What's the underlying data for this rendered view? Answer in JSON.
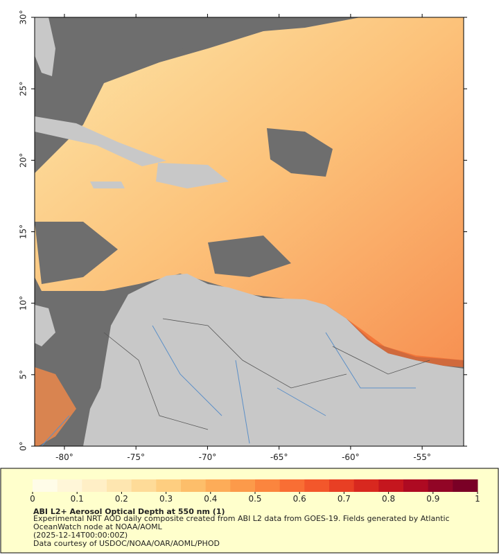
{
  "map": {
    "lonlim": [
      -82.08,
      -52.1
    ],
    "latlim": [
      0,
      30
    ],
    "lonticks": [
      {
        "value": -80,
        "label": "-80°"
      },
      {
        "value": -75,
        "label": "-75°"
      },
      {
        "value": -70,
        "label": "-70°"
      },
      {
        "value": -65,
        "label": "-65°"
      },
      {
        "value": -60,
        "label": "-60°"
      },
      {
        "value": -55,
        "label": "-55°"
      }
    ],
    "latticks": [
      {
        "value": 0,
        "label": "0°"
      },
      {
        "value": 5,
        "label": "5°"
      },
      {
        "value": 10,
        "label": "10°"
      },
      {
        "value": 15,
        "label": "15°"
      },
      {
        "value": 20,
        "label": "20°"
      },
      {
        "value": 25,
        "label": "25°"
      },
      {
        "value": 30,
        "label": "30°"
      }
    ]
  },
  "colorbar": {
    "lim": [
      0,
      1
    ],
    "ticks": [
      0,
      0.1,
      0.2,
      0.3,
      0.4,
      0.5,
      0.6,
      0.7,
      0.8,
      0.9,
      1
    ],
    "colors": [
      "#fffce8",
      "#fff6d8",
      "#ffefc6",
      "#fee6b0",
      "#fedb98",
      "#fece80",
      "#fdbe6a",
      "#fdac58",
      "#fc9a4a",
      "#fb853e",
      "#f96e34",
      "#f3572b",
      "#e83f24",
      "#d8281f",
      "#c5161e",
      "#ae0a22",
      "#920526",
      "#7a0026"
    ]
  },
  "caption": {
    "title": "ABI L2+ Aerosol Optical Depth at 550 nm (1)",
    "description": "Experimental NRT AOD daily composite created from ABI L2 data from GOES-19. Fields generated by Atlantic OceanWatch node at NOAA/AOML",
    "time": "(2025-12-14T00:00:00Z)",
    "credit": "Data courtesy of USDOC/NOAA/OAR/AOML/PHOD"
  }
}
